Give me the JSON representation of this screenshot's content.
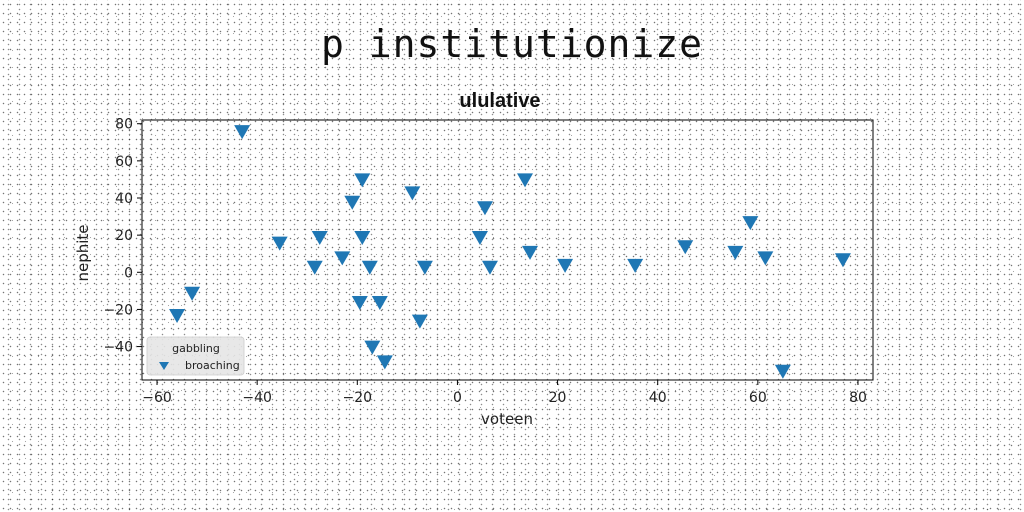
{
  "suptitle": "p institutionize",
  "chart_data": {
    "type": "scatter",
    "title": "ululative",
    "xlabel": "voteen",
    "ylabel": "nephite",
    "xlim": [
      -63,
      83
    ],
    "ylim": [
      -58,
      82
    ],
    "xticks": [
      -60,
      -40,
      -20,
      0,
      20,
      40,
      60,
      80
    ],
    "yticks": [
      -40,
      -20,
      0,
      20,
      40,
      60,
      80
    ],
    "grid": false,
    "legend": {
      "title": "gabbling",
      "placement": "lower-left"
    },
    "series": [
      {
        "name": "broaching",
        "marker": "triangle-down",
        "color": "#1f77b4",
        "x": [
          -43,
          -56,
          -53,
          -35.5,
          -28.5,
          -27.5,
          -23,
          -21,
          -19,
          -19,
          -19.5,
          -17.5,
          -17,
          -15.5,
          -14.5,
          -9,
          -7.5,
          -6.5,
          4.5,
          5.5,
          6.5,
          13.5,
          14.5,
          21.5,
          35.5,
          45.5,
          55.5,
          58.5,
          61.5,
          65,
          77
        ],
        "y": [
          76,
          -23,
          -11,
          16,
          3,
          19,
          8,
          38,
          50,
          19,
          -16,
          3,
          -40,
          -16,
          -48,
          43,
          -26,
          3,
          19,
          35,
          3,
          50,
          11,
          4,
          4,
          14,
          11,
          27,
          8,
          -53,
          7
        ]
      }
    ]
  }
}
